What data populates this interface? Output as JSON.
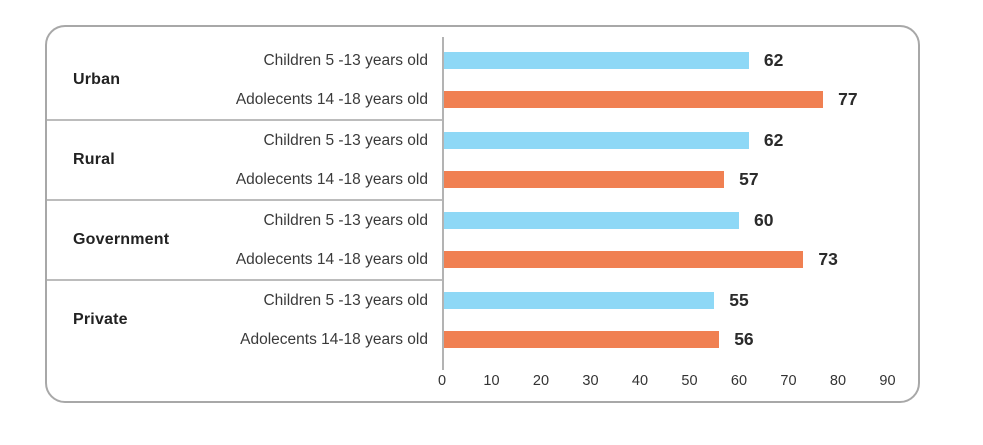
{
  "colors": {
    "bar_children": "#8ED8F6",
    "bar_adolescents": "#F08052",
    "card_border": "#a8a8a8",
    "separator": "#bcbcbc",
    "axis_line": "#b3b3b3",
    "value_text": "#2b2b2b",
    "label_text": "#3a3a3a"
  },
  "chart_data": {
    "type": "bar",
    "orientation": "horizontal",
    "title": "",
    "xlabel": "",
    "ylabel": "",
    "grid": false,
    "legend": "none (rows labeled inline)",
    "x_axis": {
      "min": 0,
      "max": 90,
      "ticks": [
        0,
        10,
        20,
        30,
        40,
        50,
        60,
        70,
        80,
        90
      ]
    },
    "categories": [
      "Urban",
      "Rural",
      "Government",
      "Private"
    ],
    "series": [
      {
        "key": "children",
        "name": "Children 5 -13 years old",
        "color": "#8ED8F6",
        "values": [
          62,
          62,
          60,
          55
        ]
      },
      {
        "key": "adolescents",
        "name": "Adolecents 14 -18 years old",
        "color": "#F08052",
        "values": [
          77,
          57,
          73,
          56
        ]
      }
    ],
    "groups": [
      {
        "label": "Urban",
        "rows": [
          {
            "series": "children",
            "label": "Children 5 -13 years old",
            "value": 62
          },
          {
            "series": "adolescents",
            "label": "Adolecents 14 -18 years old",
            "value": 77
          }
        ]
      },
      {
        "label": "Rural",
        "rows": [
          {
            "series": "children",
            "label": "Children 5 -13 years old",
            "value": 62
          },
          {
            "series": "adolescents",
            "label": "Adolecents 14 -18 years old",
            "value": 57
          }
        ]
      },
      {
        "label": "Government",
        "rows": [
          {
            "series": "children",
            "label": "Children 5 -13 years old",
            "value": 60
          },
          {
            "series": "adolescents",
            "label": "Adolecents 14 -18 years old",
            "value": 73
          }
        ]
      },
      {
        "label": "Private",
        "rows": [
          {
            "series": "children",
            "label": "Children 5 -13 years old",
            "value": 55
          },
          {
            "series": "adolescents",
            "label": "Adolecents 14-18 years old",
            "value": 56
          }
        ]
      }
    ]
  }
}
